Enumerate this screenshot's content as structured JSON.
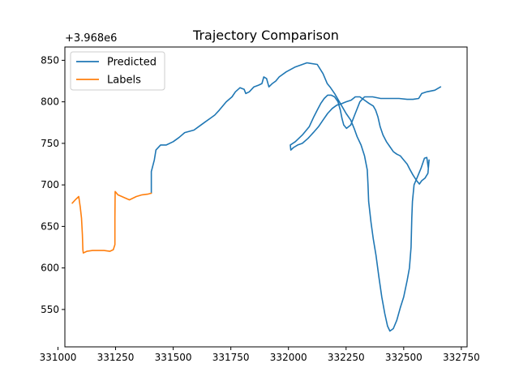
{
  "chart_data": {
    "type": "line",
    "title": "Trajectory Comparison",
    "xlabel": "",
    "ylabel": "",
    "y_offset_label": "+3.968e6",
    "xlim": [
      331030,
      332775
    ],
    "ylim": [
      505,
      866
    ],
    "x_ticks": [
      331000,
      331250,
      331500,
      331750,
      332000,
      332250,
      332500,
      332750
    ],
    "x_tick_labels": [
      "331000",
      "331250",
      "331500",
      "331750",
      "332000",
      "332250",
      "332500",
      "332750"
    ],
    "y_ticks": [
      550,
      600,
      650,
      700,
      750,
      800,
      850
    ],
    "y_tick_labels": [
      "550",
      "600",
      "650",
      "700",
      "750",
      "800",
      "850"
    ],
    "grid": false,
    "legend_position": "top-left",
    "series": [
      {
        "name": "Predicted",
        "color": "#1f77b4",
        "points": [
          [
            331405,
            690
          ],
          [
            331405,
            716
          ],
          [
            331418,
            730
          ],
          [
            331425,
            742
          ],
          [
            331445,
            748
          ],
          [
            331470,
            748
          ],
          [
            331500,
            752
          ],
          [
            331525,
            757
          ],
          [
            331550,
            763
          ],
          [
            331590,
            766
          ],
          [
            331620,
            772
          ],
          [
            331640,
            776
          ],
          [
            331660,
            780
          ],
          [
            331680,
            784
          ],
          [
            331700,
            790
          ],
          [
            331730,
            800
          ],
          [
            331755,
            806
          ],
          [
            331770,
            812
          ],
          [
            331790,
            817
          ],
          [
            331808,
            815
          ],
          [
            331815,
            810
          ],
          [
            331830,
            812
          ],
          [
            331850,
            818
          ],
          [
            331870,
            820
          ],
          [
            331885,
            822
          ],
          [
            331893,
            830
          ],
          [
            331905,
            828
          ],
          [
            331915,
            818
          ],
          [
            331930,
            822
          ],
          [
            331945,
            825
          ],
          [
            331960,
            830
          ],
          [
            331990,
            836
          ],
          [
            332030,
            842
          ],
          [
            332080,
            847
          ],
          [
            332125,
            845
          ],
          [
            332150,
            834
          ],
          [
            332168,
            822
          ],
          [
            332180,
            818
          ],
          [
            332200,
            810
          ],
          [
            332225,
            798
          ],
          [
            332250,
            786
          ],
          [
            332270,
            778
          ],
          [
            332285,
            768
          ],
          [
            332298,
            758
          ],
          [
            332315,
            748
          ],
          [
            332330,
            735
          ],
          [
            332342,
            718
          ],
          [
            332345,
            700
          ],
          [
            332348,
            680
          ],
          [
            332358,
            655
          ],
          [
            332368,
            635
          ],
          [
            332380,
            615
          ],
          [
            332392,
            590
          ],
          [
            332405,
            565
          ],
          [
            332418,
            545
          ],
          [
            332430,
            530
          ],
          [
            332440,
            524
          ],
          [
            332455,
            527
          ],
          [
            332470,
            537
          ],
          [
            332485,
            552
          ],
          [
            332500,
            565
          ],
          [
            332515,
            585
          ],
          [
            332525,
            600
          ],
          [
            332532,
            625
          ],
          [
            332535,
            660
          ],
          [
            332538,
            680
          ],
          [
            332545,
            700
          ],
          [
            332560,
            710
          ],
          [
            332575,
            720
          ],
          [
            332590,
            732
          ],
          [
            332600,
            733
          ],
          [
            332607,
            720
          ],
          [
            332610,
            730
          ],
          [
            332605,
            714
          ],
          [
            332592,
            708
          ],
          [
            332578,
            705
          ],
          [
            332568,
            701
          ],
          [
            332556,
            705
          ],
          [
            332540,
            712
          ],
          [
            332528,
            718
          ],
          [
            332515,
            725
          ],
          [
            332500,
            730
          ],
          [
            332485,
            735
          ],
          [
            332470,
            737
          ],
          [
            332455,
            740
          ],
          [
            332440,
            746
          ],
          [
            332425,
            752
          ],
          [
            332410,
            760
          ],
          [
            332398,
            770
          ],
          [
            332388,
            782
          ],
          [
            332378,
            790
          ],
          [
            332368,
            795
          ],
          [
            332350,
            798
          ],
          [
            332330,
            802
          ],
          [
            332310,
            806
          ],
          [
            332290,
            806
          ],
          [
            332272,
            802
          ],
          [
            332250,
            800
          ],
          [
            332232,
            798
          ],
          [
            332210,
            796
          ],
          [
            332190,
            792
          ],
          [
            332170,
            786
          ],
          [
            332150,
            778
          ],
          [
            332130,
            770
          ],
          [
            332108,
            763
          ],
          [
            332085,
            756
          ],
          [
            332060,
            750
          ],
          [
            332040,
            748
          ],
          [
            332022,
            745
          ],
          [
            332010,
            742
          ],
          [
            332008,
            748
          ],
          [
            332030,
            752
          ],
          [
            332060,
            760
          ],
          [
            332090,
            770
          ],
          [
            332110,
            782
          ],
          [
            332125,
            790
          ],
          [
            332140,
            798
          ],
          [
            332155,
            804
          ],
          [
            332170,
            808
          ],
          [
            332185,
            808
          ],
          [
            332200,
            806
          ],
          [
            332215,
            800
          ],
          [
            332225,
            790
          ],
          [
            332232,
            780
          ],
          [
            332240,
            772
          ],
          [
            332252,
            768
          ],
          [
            332270,
            772
          ],
          [
            332290,
            786
          ],
          [
            332310,
            800
          ],
          [
            332330,
            806
          ],
          [
            332365,
            806
          ],
          [
            332400,
            804
          ],
          [
            332440,
            804
          ],
          [
            332480,
            804
          ],
          [
            332515,
            803
          ],
          [
            332540,
            803
          ],
          [
            332565,
            804
          ],
          [
            332578,
            810
          ],
          [
            332600,
            812
          ],
          [
            332635,
            814
          ],
          [
            332660,
            818
          ]
        ]
      },
      {
        "name": "Labels",
        "color": "#ff7f0e",
        "points": [
          [
            331062,
            678
          ],
          [
            331075,
            682
          ],
          [
            331090,
            686
          ],
          [
            331097,
            673
          ],
          [
            331102,
            660
          ],
          [
            331106,
            640
          ],
          [
            331108,
            622
          ],
          [
            331110,
            618
          ],
          [
            331125,
            620
          ],
          [
            331150,
            621
          ],
          [
            331175,
            621
          ],
          [
            331200,
            621
          ],
          [
            331225,
            620
          ],
          [
            331240,
            622
          ],
          [
            331247,
            628
          ],
          [
            331247,
            660
          ],
          [
            331248,
            692
          ],
          [
            331260,
            688
          ],
          [
            331285,
            685
          ],
          [
            331310,
            682
          ],
          [
            331340,
            686
          ],
          [
            331365,
            688
          ],
          [
            331392,
            689
          ],
          [
            331405,
            690
          ]
        ]
      }
    ]
  }
}
